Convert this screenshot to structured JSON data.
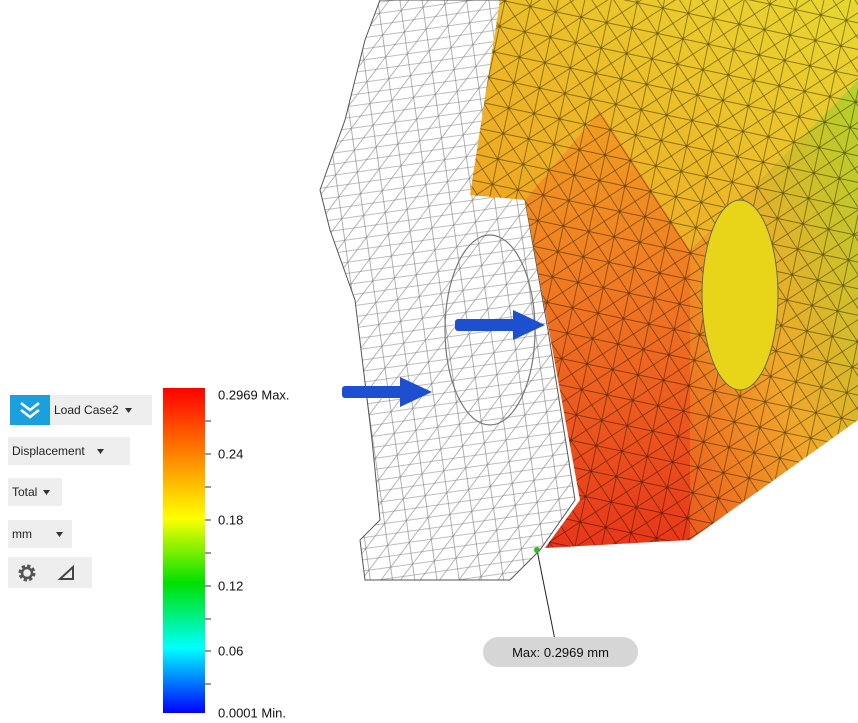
{
  "toolbar": {
    "load_case": "Load Case2",
    "result_type": "Displacement",
    "component": "Total",
    "units": "mm"
  },
  "legend": {
    "labels": [
      "0.2969 Max.",
      "0.24",
      "0.18",
      "0.12",
      "0.06",
      "0.0001 Min."
    ]
  },
  "probe": {
    "label": "Max: 0.2969 mm"
  }
}
